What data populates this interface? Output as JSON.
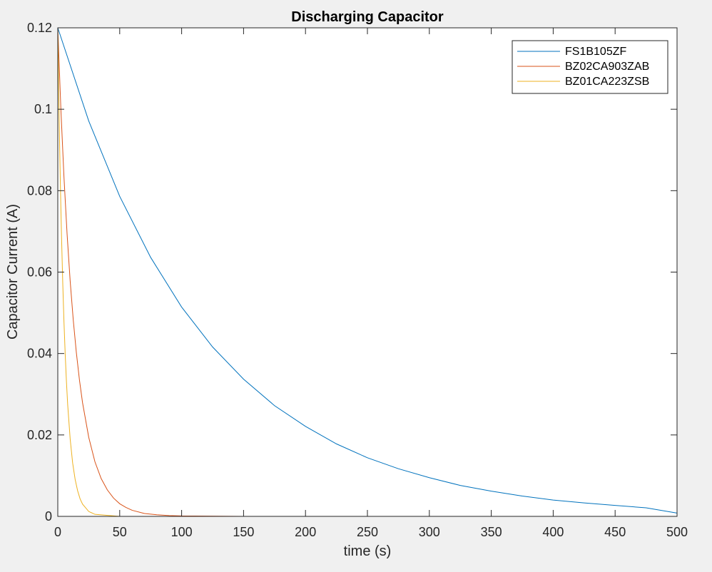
{
  "chart_data": {
    "type": "line",
    "title": "Discharging Capacitor",
    "xlabel": "time (s)",
    "ylabel": "Capacitor Current (A)",
    "xlim": [
      0,
      500
    ],
    "ylim": [
      0,
      0.12
    ],
    "xticks": [
      0,
      50,
      100,
      150,
      200,
      250,
      300,
      350,
      400,
      450,
      500
    ],
    "yticks": [
      0,
      0.02,
      0.04,
      0.06,
      0.08,
      0.1,
      0.12
    ],
    "xtick_labels": [
      "0",
      "50",
      "100",
      "150",
      "200",
      "250",
      "300",
      "350",
      "400",
      "450",
      "500"
    ],
    "ytick_labels": [
      "0",
      "0.02",
      "0.04",
      "0.06",
      "0.08",
      "0.1",
      "0.12"
    ],
    "grid": false,
    "legend_position": "top-right",
    "series": [
      {
        "name": "FS1B105ZF",
        "color": "#0072BD",
        "x": [
          0,
          25,
          50,
          75,
          100,
          125,
          150,
          175,
          200,
          225,
          250,
          275,
          300,
          325,
          350,
          375,
          400,
          425,
          450,
          475,
          500
        ],
        "y": [
          0.12,
          0.0971,
          0.0786,
          0.0636,
          0.0514,
          0.0416,
          0.0337,
          0.0272,
          0.0221,
          0.0178,
          0.0144,
          0.0117,
          0.0095,
          0.0076,
          0.0062,
          0.005,
          0.004,
          0.0033,
          0.0027,
          0.0021,
          0.0008
        ]
      },
      {
        "name": "BZ02CA903ZAB",
        "color": "#D95319",
        "x": [
          0,
          2.5,
          5,
          7.5,
          10,
          12.5,
          15,
          17.5,
          20,
          25,
          30,
          35,
          40,
          45,
          50,
          55,
          60,
          70,
          80,
          90,
          100,
          150,
          200,
          300,
          400,
          500
        ],
        "y": [
          0.12,
          0.1,
          0.0833,
          0.0694,
          0.0578,
          0.0482,
          0.0402,
          0.0335,
          0.0279,
          0.0194,
          0.0134,
          0.0093,
          0.0065,
          0.0045,
          0.0031,
          0.0022,
          0.0015,
          0.0007,
          0.0004,
          0.0002,
          0.0001,
          0,
          0,
          0,
          0,
          0
        ]
      },
      {
        "name": "BZ01CA223ZSB",
        "color": "#EDB120",
        "x": [
          0,
          0.5,
          1,
          1.5,
          2,
          2.5,
          3,
          4,
          5,
          6,
          7,
          8,
          10,
          12,
          14,
          16,
          18,
          20,
          25,
          30,
          50,
          100,
          200,
          300,
          400,
          500
        ],
        "y": [
          0.12,
          0.1094,
          0.0998,
          0.091,
          0.083,
          0.0757,
          0.069,
          0.0574,
          0.0477,
          0.0397,
          0.033,
          0.0274,
          0.019,
          0.0131,
          0.0091,
          0.0063,
          0.0043,
          0.003,
          0.0012,
          0.0005,
          0,
          0,
          0,
          0,
          0,
          0
        ]
      }
    ]
  }
}
